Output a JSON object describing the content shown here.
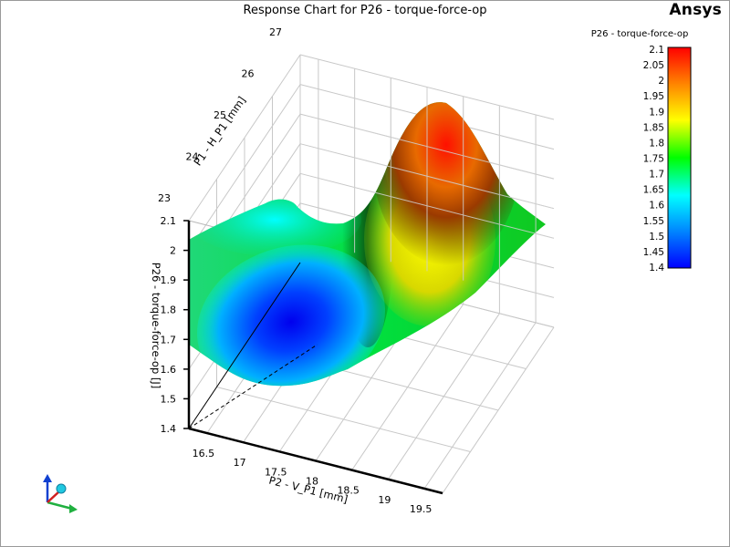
{
  "title": "Response Chart for P26 - torque-force-op",
  "logo": {
    "text": "Ansys"
  },
  "chart_data": {
    "type": "surface",
    "title": "Response Chart for P26 - torque-force-op",
    "x_axis": {
      "label": "P2 - V_P1  [mm]",
      "ticks": [
        16.5,
        17,
        17.5,
        18,
        18.5,
        19,
        19.5
      ],
      "range": [
        16.25,
        19.75
      ]
    },
    "y_axis": {
      "label": "P1 - H_P1  [mm]",
      "ticks": [
        23,
        24,
        25,
        26,
        27
      ],
      "range": [
        23,
        27
      ]
    },
    "z_axis": {
      "label": "P26 - torque-force-op  [J]",
      "ticks": [
        1.4,
        1.5,
        1.6,
        1.7,
        1.8,
        1.9,
        2,
        2.1
      ],
      "range": [
        1.4,
        2.1
      ]
    },
    "colorbar": {
      "title": "P26 - torque-force-op",
      "ticks": [
        "2.1",
        "2.05",
        "2",
        "1.95",
        "1.9",
        "1.85",
        "1.8",
        "1.75",
        "1.7",
        "1.65",
        "1.6",
        "1.55",
        "1.5",
        "1.45",
        "1.4"
      ],
      "colors": [
        "#ff0000",
        "#ff8800",
        "#ffff00",
        "#00ff00",
        "#00ffff",
        "#0088ff",
        "#0000ff"
      ]
    },
    "features": {
      "minimum": {
        "x": 17.4,
        "y": 24.0,
        "z": 1.42
      },
      "maximum": {
        "x": 18.9,
        "y": 26.9,
        "z": 2.08
      }
    },
    "grid": true,
    "legend_placement": "right"
  }
}
